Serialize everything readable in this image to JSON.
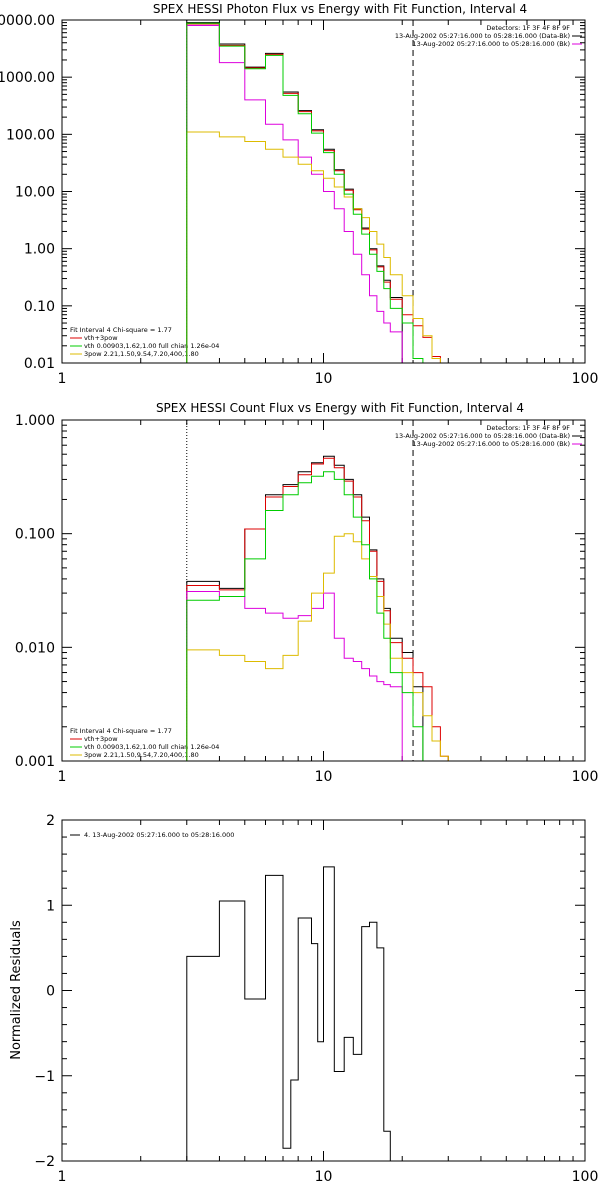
{
  "chart_data": [
    {
      "type": "line",
      "title": "SPEX HESSI Photon Flux vs Energy with Fit Function, Interval 4",
      "xscale": "log",
      "yscale": "log",
      "xlim": [
        1,
        100
      ],
      "ylim": [
        0.01,
        10000
      ],
      "xticklabels": [
        "1",
        "10",
        "100"
      ],
      "yticklabels": [
        "10000.00",
        "1000.00",
        "100.00",
        "10.00",
        "1.00",
        "0.10",
        "0.01"
      ],
      "ytickvalues": [
        10000,
        1000,
        100,
        10,
        1,
        0.1,
        0.01
      ],
      "vlines": [
        {
          "x": 3,
          "style": "dotted"
        },
        {
          "x": 22,
          "style": "dashed"
        }
      ],
      "header_lines": [
        "Detectors: 1F 3F 4F 8F 9F",
        "13-Aug-2002 05:27:16.000 to 05:28:16.000 (Data-Bk)",
        "13-Aug-2002 05:27:16.000 to 05:28:16.000 (Bk)"
      ],
      "legend_lines": [
        "Fit Interval 4   Chi-square = 1.77",
        "vth+3pow",
        "vth 0.00903,1.62,1.00  full chian 1.26e-04",
        "3pow 2.21,1.50,9.54,7.20,400,1.80"
      ],
      "edges": [
        3.0,
        4.0,
        5.0,
        6.0,
        7.0,
        8.0,
        9.0,
        10.0,
        11.0,
        12.0,
        13.0,
        14.0,
        15.0,
        16.0,
        17.0,
        18.0,
        20.0,
        22.0,
        24.0,
        26.0,
        28.0
      ],
      "series": [
        {
          "name": "Data-Bk",
          "color": "#000000",
          "values": [
            9000,
            3800,
            1500,
            2600,
            550,
            260,
            120,
            55,
            24,
            11,
            5.0,
            2.3,
            1.0,
            0.5,
            0.28,
            0.14,
            null,
            null,
            null,
            null
          ]
        },
        {
          "name": "vth+3pow",
          "color": "#dd0000",
          "values": [
            8500,
            3600,
            1450,
            2500,
            520,
            250,
            115,
            52,
            23,
            10.5,
            4.8,
            2.2,
            0.95,
            0.48,
            0.26,
            0.13,
            0.07,
            0.045,
            0.028,
            0.013
          ]
        },
        {
          "name": "vth",
          "color": "#00cc00",
          "values": [
            8800,
            3500,
            1400,
            2400,
            480,
            230,
            105,
            48,
            20,
            9,
            4,
            1.8,
            0.8,
            0.4,
            0.2,
            0.09,
            0.05,
            0.012,
            null,
            null
          ]
        },
        {
          "name": "Bk",
          "color": "#dd00dd",
          "values": [
            8000,
            1800,
            400,
            150,
            80,
            40,
            20,
            10,
            5,
            2,
            0.8,
            0.35,
            0.15,
            0.08,
            0.05,
            0.035,
            null,
            null,
            null,
            null
          ]
        },
        {
          "name": "3pow",
          "color": "#ddbb00",
          "values": [
            110,
            90,
            75,
            55,
            40,
            30,
            23,
            17,
            12,
            8,
            5,
            3.5,
            2.0,
            1.2,
            0.7,
            0.35,
            0.15,
            0.06,
            0.03,
            0.012
          ]
        }
      ]
    },
    {
      "type": "line",
      "title": "SPEX HESSI Count Flux vs Energy with Fit Function, Interval 4",
      "xscale": "log",
      "yscale": "log",
      "xlim": [
        1,
        100
      ],
      "ylim": [
        0.001,
        1
      ],
      "xticklabels": [
        "1",
        "10",
        "100"
      ],
      "yticklabels": [
        "1.000",
        "0.100",
        "0.010",
        "0.001"
      ],
      "ytickvalues": [
        1,
        0.1,
        0.01,
        0.001
      ],
      "vlines": [
        {
          "x": 3,
          "style": "dotted"
        },
        {
          "x": 22,
          "style": "dashed"
        }
      ],
      "header_lines": [
        "Detectors: 1F 3F 4F 8F 9F",
        "13-Aug-2002 05:27:16.000 to 05:28:16.000 (Data-Bk)",
        "13-Aug-2002 05:27:16.000 to 05:28:16.000 (Bk)"
      ],
      "legend_lines": [
        "Fit Interval 4   Chi-square = 1.77",
        "vth+3pow",
        "vth 0.00903,1.62,1.00  full chian 1.26e-04",
        "3pow 2.21,1.50,9.54,7.20,400,1.80"
      ],
      "edges": [
        3.0,
        4.0,
        5.0,
        6.0,
        7.0,
        8.0,
        9.0,
        10.0,
        11.0,
        12.0,
        13.0,
        14.0,
        15.0,
        16.0,
        17.0,
        18.0,
        20.0,
        22.0,
        24.0,
        26.0,
        28.0,
        30.0
      ],
      "series": [
        {
          "name": "Data-Bk",
          "color": "#000000",
          "values": [
            0.038,
            0.033,
            0.11,
            0.22,
            0.27,
            0.35,
            0.42,
            0.48,
            0.4,
            0.3,
            0.22,
            0.14,
            0.072,
            0.04,
            0.022,
            0.012,
            0.009,
            0.0045,
            null,
            null,
            null
          ]
        },
        {
          "name": "vth+3pow",
          "color": "#dd0000",
          "values": [
            0.035,
            0.032,
            0.11,
            0.21,
            0.26,
            0.33,
            0.41,
            0.46,
            0.38,
            0.29,
            0.21,
            0.13,
            0.07,
            0.038,
            0.021,
            0.011,
            0.008,
            0.006,
            0.0045,
            0.002,
            0.0011
          ]
        },
        {
          "name": "vth",
          "color": "#00cc00",
          "values": [
            0.026,
            0.028,
            0.06,
            0.16,
            0.22,
            0.28,
            0.32,
            0.35,
            0.3,
            0.22,
            0.14,
            0.08,
            0.04,
            0.02,
            0.012,
            0.006,
            0.004,
            0.002,
            0.001,
            null,
            null
          ]
        },
        {
          "name": "Bk",
          "color": "#dd00dd",
          "values": [
            0.031,
            0.028,
            0.022,
            0.02,
            0.018,
            0.019,
            0.022,
            0.03,
            0.012,
            0.008,
            0.0075,
            0.0065,
            0.0056,
            0.005,
            0.0047,
            0.0045,
            null,
            null,
            null,
            null,
            null
          ]
        },
        {
          "name": "3pow",
          "color": "#ddbb00",
          "values": [
            0.0095,
            0.0085,
            0.0075,
            0.0065,
            0.0085,
            0.017,
            0.03,
            0.045,
            0.095,
            0.1,
            0.085,
            0.06,
            0.042,
            0.028,
            0.016,
            0.008,
            0.006,
            0.004,
            0.0025,
            0.0015,
            0.0011
          ]
        }
      ]
    },
    {
      "type": "line",
      "title": "",
      "xscale": "log",
      "yscale": "linear",
      "xlim": [
        1,
        100
      ],
      "ylim": [
        -2,
        2
      ],
      "xticklabels": [
        "1",
        "10",
        "100"
      ],
      "yticklabels": [
        "2",
        "1",
        "0",
        "−1",
        "−2"
      ],
      "ytickvalues": [
        2,
        1,
        0,
        -1,
        -2
      ],
      "ylabel": "Normalized Residuals",
      "legend_lines": [
        "4. 13-Aug-2002 05:27:16.000 to 05:28:16.000"
      ],
      "edges": [
        3.0,
        4.0,
        5.0,
        6.0,
        7.0,
        7.5,
        8.0,
        9.0,
        9.5,
        10.0,
        11.0,
        12.0,
        13.0,
        14.0,
        15.0,
        16.0,
        17.0,
        18.0,
        20.0,
        22.0
      ],
      "series": [
        {
          "name": "4. 13-Aug-2002 05:27:16.000 to 05:28:16.000",
          "color": "#000000",
          "values": [
            0.4,
            1.05,
            -0.1,
            1.35,
            -1.85,
            -1.05,
            0.85,
            0.55,
            -0.6,
            1.45,
            -0.95,
            -0.55,
            -0.75,
            0.75,
            0.8,
            0.5,
            -1.65,
            -2.1,
            null
          ]
        }
      ]
    }
  ]
}
